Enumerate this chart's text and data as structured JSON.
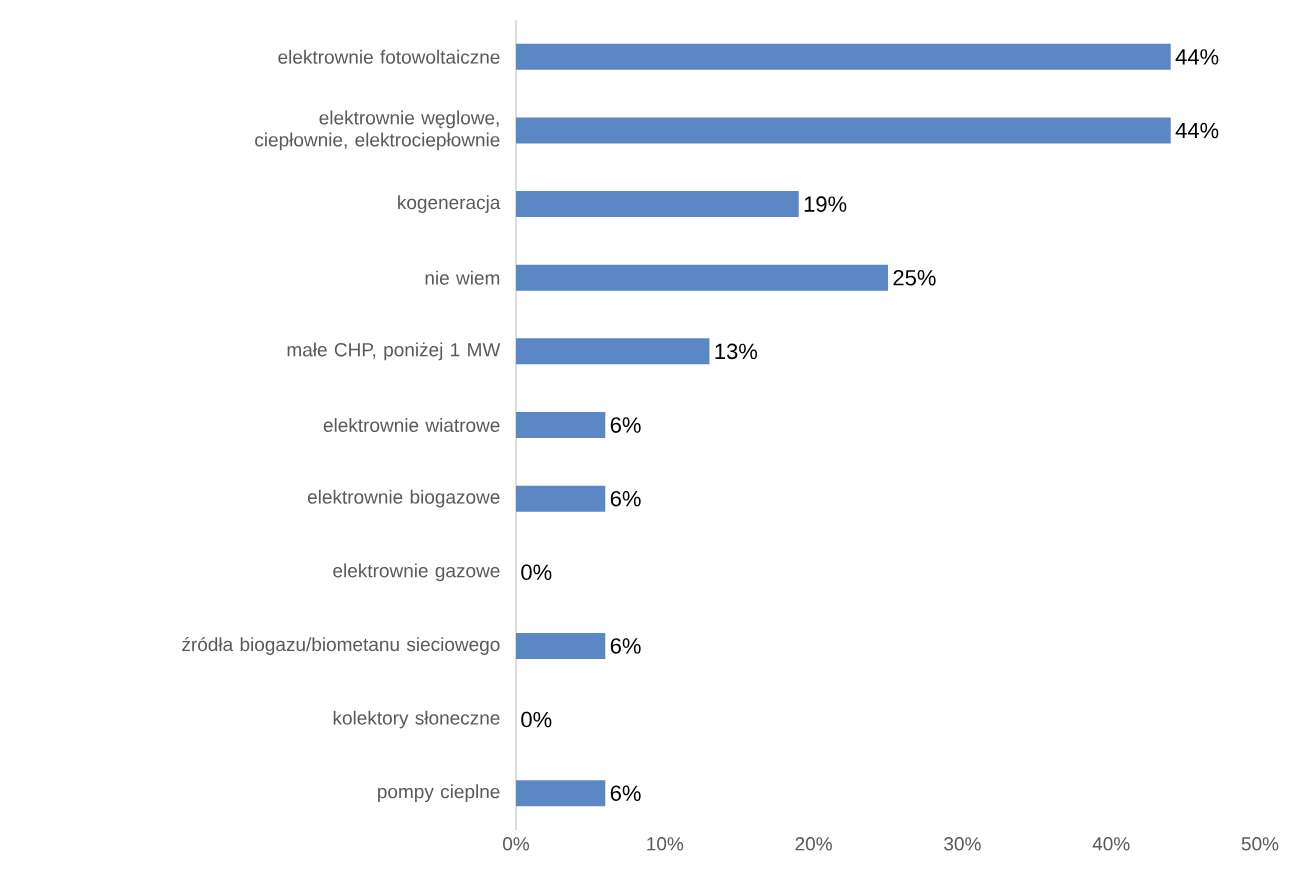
{
  "chart_data": {
    "type": "bar",
    "orientation": "horizontal",
    "categories": [
      "elektrownie fotowoltaiczne",
      "elektrownie węglowe, ciepłownie, elektrociepłownie",
      "kogeneracja",
      "nie wiem",
      "małe CHP, poniżej 1 MW",
      "elektrownie wiatrowe",
      "elektrownie biogazowe",
      "elektrownie gazowe",
      "źródła biogazu/biometanu sieciowego",
      "kolektory słoneczne",
      "pompy cieplne"
    ],
    "values": [
      44,
      44,
      19,
      25,
      13,
      6,
      6,
      0,
      6,
      0,
      6
    ],
    "value_labels": [
      "44%",
      "44%",
      "19%",
      "25%",
      "13%",
      "6%",
      "6%",
      "0%",
      "6%",
      "0%",
      "6%"
    ],
    "color": "#5b87c5",
    "xlim": [
      0,
      50
    ],
    "xticks": [
      {
        "value": 0,
        "label": "0%"
      },
      {
        "value": 10,
        "label": "10%"
      },
      {
        "value": 20,
        "label": "20%"
      },
      {
        "value": 30,
        "label": "30%"
      },
      {
        "value": 40,
        "label": "40%"
      },
      {
        "value": 50,
        "label": "50%"
      }
    ]
  }
}
